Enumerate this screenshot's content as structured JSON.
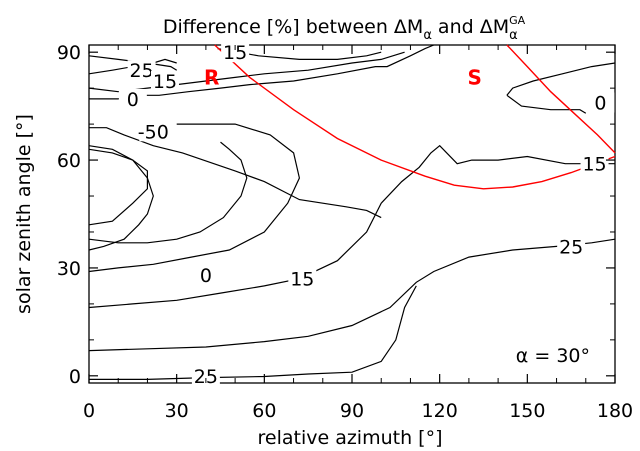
{
  "chart_data": {
    "type": "line",
    "title_parts": {
      "prefix": "Difference [%] between ",
      "delta": "ΔM",
      "sub": "α",
      "and": " and ",
      "sup": "GA"
    },
    "xlabel": "relative azimuth [°]",
    "ylabel": "solar zenith angle [°]",
    "xlim": [
      0,
      180
    ],
    "ylim": [
      -2,
      92
    ],
    "xticks": [
      "0",
      "30",
      "60",
      "90",
      "120",
      "150",
      "180"
    ],
    "yticks": [
      "0",
      "30",
      "60",
      "90"
    ],
    "grid": false,
    "annotation": "α = 30°",
    "markers": [
      {
        "label": "R",
        "x": 42,
        "y": 83
      },
      {
        "label": "S",
        "x": 132,
        "y": 83
      }
    ],
    "boundary_curves": [
      {
        "name": "R",
        "points": [
          [
            43,
            92
          ],
          [
            55,
            83
          ],
          [
            70,
            74
          ],
          [
            85,
            66
          ],
          [
            100,
            60
          ],
          [
            115,
            55.5
          ],
          [
            125,
            53
          ],
          [
            135,
            52
          ],
          [
            145,
            52.5
          ],
          [
            155,
            54
          ],
          [
            165,
            56.5
          ],
          [
            175,
            59.5
          ],
          [
            180,
            61
          ]
        ]
      },
      {
        "name": "S",
        "points": [
          [
            143,
            92
          ],
          [
            150,
            86
          ],
          [
            158,
            79
          ],
          [
            166,
            73
          ],
          [
            174,
            67
          ],
          [
            180,
            62
          ]
        ]
      }
    ],
    "contours": [
      {
        "label": "25",
        "points": [
          [
            0,
            89
          ],
          [
            10,
            88
          ],
          [
            20,
            87
          ],
          [
            28,
            86
          ],
          [
            30,
            85
          ]
        ]
      },
      {
        "label": "25",
        "points": [
          [
            0,
            84
          ],
          [
            8,
            85
          ],
          [
            15,
            86
          ],
          [
            22,
            87
          ],
          [
            26,
            88
          ],
          [
            30,
            87
          ]
        ]
      },
      {
        "label": "15",
        "points": [
          [
            0,
            80
          ],
          [
            10,
            79
          ],
          [
            20,
            80
          ],
          [
            30,
            81
          ],
          [
            40,
            82
          ],
          [
            50,
            83
          ],
          [
            60,
            84
          ],
          [
            75,
            85
          ],
          [
            90,
            87
          ],
          [
            100,
            88
          ],
          [
            108,
            90
          ]
        ]
      },
      {
        "label": "15",
        "points": [
          [
            44,
            91
          ],
          [
            58,
            89
          ],
          [
            72,
            88
          ],
          [
            85,
            88
          ],
          [
            95,
            89
          ],
          [
            100,
            90
          ]
        ]
      },
      {
        "label": "0",
        "points": [
          [
            0,
            77
          ],
          [
            10,
            77
          ],
          [
            16,
            78
          ],
          [
            24,
            78
          ],
          [
            34,
            79
          ],
          [
            45,
            80
          ],
          [
            55,
            81
          ],
          [
            70,
            82
          ],
          [
            85,
            84
          ],
          [
            98,
            86
          ],
          [
            102,
            86
          ],
          [
            110,
            89
          ],
          [
            115,
            91
          ],
          [
            118,
            92
          ]
        ]
      },
      {
        "label": "-50",
        "points": [
          [
            0,
            69
          ],
          [
            6,
            69
          ],
          [
            12,
            67
          ],
          [
            22,
            64
          ],
          [
            32,
            62
          ],
          [
            50,
            57
          ],
          [
            60,
            54
          ],
          [
            72,
            49
          ],
          [
            88,
            47
          ],
          [
            95,
            46
          ],
          [
            100,
            44
          ]
        ]
      },
      {
        "label": "-50",
        "points": [
          [
            0,
            64
          ],
          [
            8,
            63
          ],
          [
            15,
            60
          ],
          [
            20,
            55
          ],
          [
            22,
            50
          ],
          [
            20,
            45
          ],
          [
            17,
            42
          ],
          [
            12,
            38
          ],
          [
            5,
            36
          ],
          [
            0,
            35
          ]
        ]
      },
      {
        "label": "-50",
        "points": [
          [
            0,
            42
          ],
          [
            8,
            43
          ],
          [
            15,
            48
          ],
          [
            20,
            52
          ],
          [
            20,
            57
          ],
          [
            15,
            60
          ],
          [
            8,
            62
          ],
          [
            0,
            63
          ]
        ]
      },
      {
        "label": "0",
        "points": [
          [
            0,
            29
          ],
          [
            10,
            30
          ],
          [
            22,
            31
          ],
          [
            35,
            33
          ],
          [
            48,
            35
          ],
          [
            60,
            40
          ],
          [
            68,
            48
          ],
          [
            72,
            55
          ],
          [
            70,
            62
          ],
          [
            62,
            67
          ],
          [
            50,
            70
          ],
          [
            38,
            70
          ],
          [
            30,
            70
          ]
        ]
      },
      {
        "label": "0",
        "points": [
          [
            0,
            38
          ],
          [
            10,
            37
          ],
          [
            20,
            37
          ],
          [
            30,
            38
          ],
          [
            38,
            40
          ],
          [
            46,
            44
          ],
          [
            52,
            50
          ],
          [
            54,
            55
          ],
          [
            52,
            60
          ],
          [
            48,
            63
          ],
          [
            45,
            65
          ]
        ]
      },
      {
        "label": "15",
        "points": [
          [
            0,
            19
          ],
          [
            15,
            20
          ],
          [
            30,
            21
          ],
          [
            45,
            23
          ],
          [
            60,
            25
          ],
          [
            72,
            27
          ],
          [
            85,
            32
          ],
          [
            95,
            40
          ],
          [
            100,
            48
          ],
          [
            107,
            54
          ],
          [
            113,
            58
          ],
          [
            117,
            62
          ],
          [
            120,
            64
          ],
          [
            126,
            59
          ],
          [
            131,
            60
          ],
          [
            140,
            60
          ],
          [
            150,
            61
          ],
          [
            163,
            59
          ],
          [
            180,
            59
          ]
        ]
      },
      {
        "label": "25",
        "points": [
          [
            0,
            7
          ],
          [
            20,
            7.5
          ],
          [
            40,
            8
          ],
          [
            60,
            9.5
          ],
          [
            75,
            11
          ],
          [
            90,
            14
          ],
          [
            103,
            19
          ],
          [
            112,
            26
          ],
          [
            118,
            29
          ],
          [
            130,
            33
          ],
          [
            145,
            35
          ],
          [
            160,
            36
          ],
          [
            172,
            37
          ],
          [
            180,
            38
          ]
        ]
      },
      {
        "label": "25",
        "points": [
          [
            0,
            -1
          ],
          [
            20,
            -1
          ],
          [
            40,
            -0.5
          ],
          [
            60,
            -0.2
          ],
          [
            75,
            0.5
          ],
          [
            90,
            1
          ],
          [
            100,
            4
          ],
          [
            105,
            10
          ],
          [
            108,
            19
          ],
          [
            112,
            25
          ]
        ]
      },
      {
        "label": "0",
        "points": [
          [
            143,
            78
          ],
          [
            145,
            80
          ],
          [
            152,
            82
          ],
          [
            162,
            84
          ],
          [
            172,
            86
          ],
          [
            180,
            87
          ]
        ]
      },
      {
        "label": "0",
        "points": [
          [
            143,
            78
          ],
          [
            148,
            75
          ],
          [
            158,
            74
          ],
          [
            168,
            74
          ],
          [
            170,
            73
          ]
        ]
      }
    ],
    "contour_labels": [
      {
        "text": "15",
        "x": 50,
        "y": 90
      },
      {
        "text": "25",
        "x": 18,
        "y": 85
      },
      {
        "text": "15",
        "x": 26,
        "y": 82
      },
      {
        "text": "0",
        "x": 15,
        "y": 77
      },
      {
        "text": "-50",
        "x": 22,
        "y": 68
      },
      {
        "text": "0",
        "x": 40,
        "y": 28
      },
      {
        "text": "15",
        "x": 73,
        "y": 27
      },
      {
        "text": "25",
        "x": 40,
        "y": 0
      },
      {
        "text": "25",
        "x": 165,
        "y": 36
      },
      {
        "text": "15",
        "x": 173,
        "y": 59
      },
      {
        "text": "0",
        "x": 175,
        "y": 76
      }
    ]
  }
}
